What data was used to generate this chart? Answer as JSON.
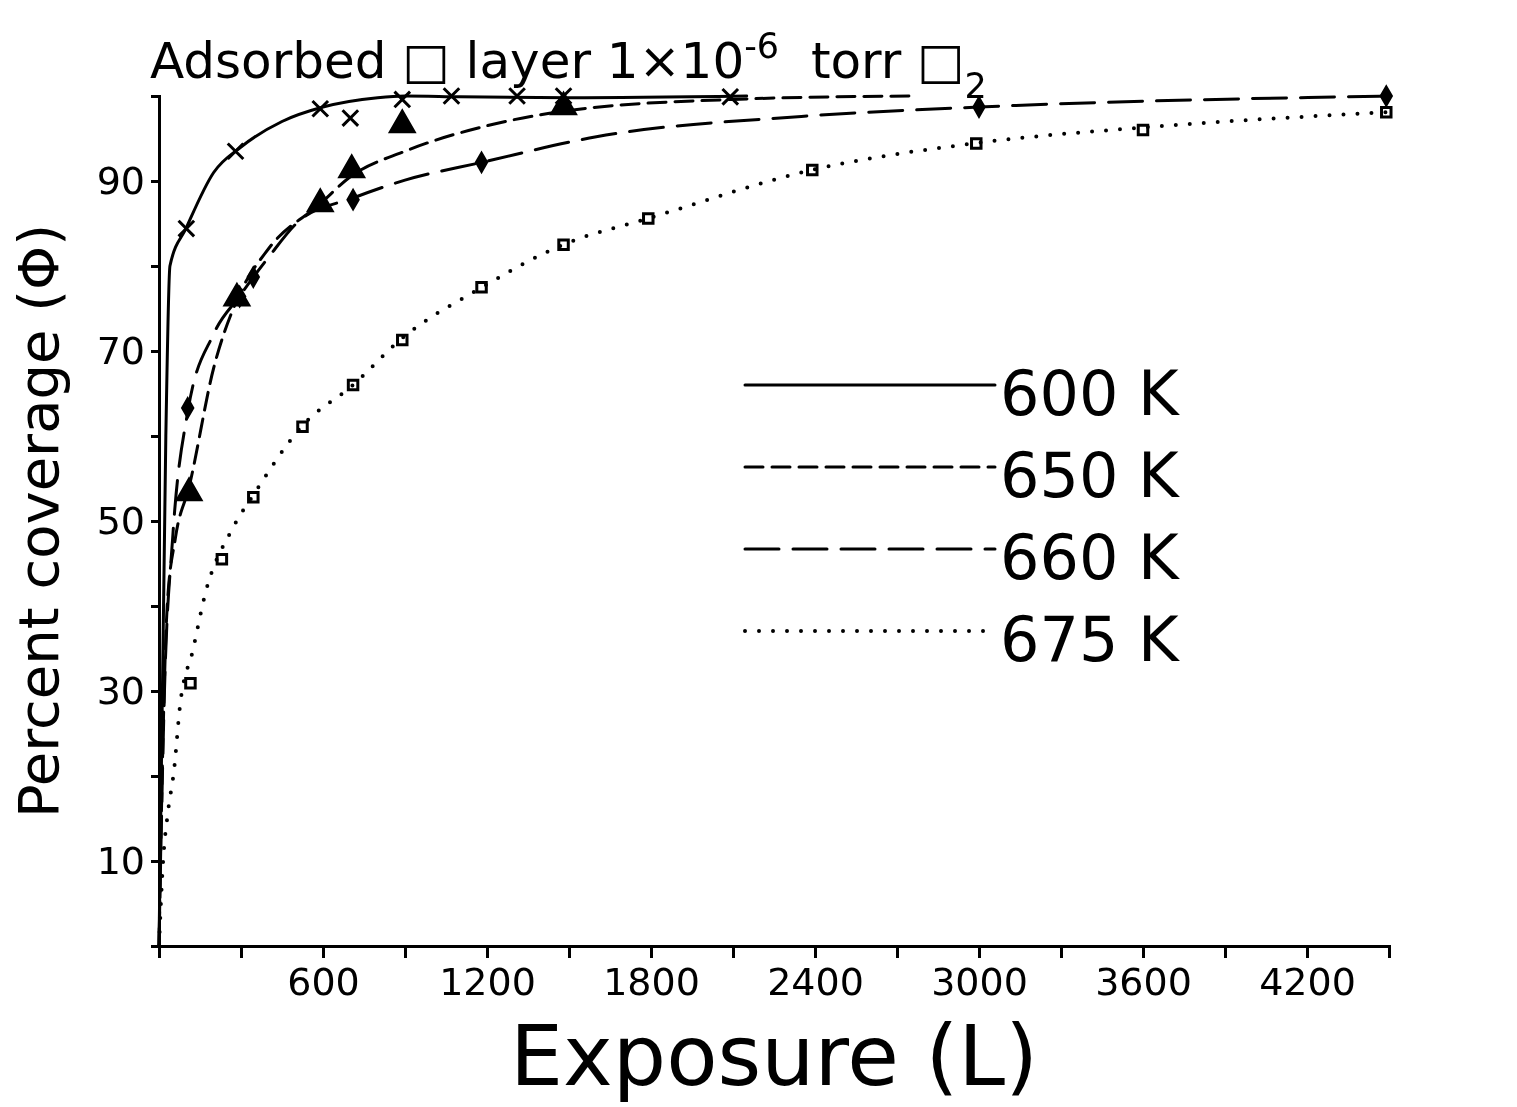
{
  "chart_data": {
    "type": "line",
    "title": "Adsorbed □ layer 1×10$^{-6}$  torr □$_{2}$",
    "xlabel": "Exposure (L)",
    "ylabel": "Percent coverage (Φ)",
    "xlim": [
      0,
      4500
    ],
    "ylim": [
      0,
      100
    ],
    "xticks": [
      {
        "value": 300,
        "label": null
      },
      600,
      {
        "value": 900,
        "label": null
      },
      1200,
      {
        "value": 1500,
        "label": null
      },
      1800,
      {
        "value": 2100,
        "label": null
      },
      2400,
      {
        "value": 2700,
        "label": null
      },
      3000,
      {
        "value": 3300,
        "label": null
      },
      3600,
      {
        "value": 3900,
        "label": null
      },
      4200
    ],
    "yticks": [
      10,
      {
        "value": 20,
        "label": null
      },
      30,
      {
        "value": 40,
        "label": null
      },
      50,
      {
        "value": 60,
        "label": null
      },
      70,
      {
        "value": 80,
        "label": null
      },
      90,
      {
        "value": 100,
        "label": null
      }
    ],
    "grid": false,
    "legend": "right",
    "series": [
      {
        "name": "600 K",
        "line_style": "solid",
        "color": "#000000",
        "x": [
          0,
          25,
          40,
          100,
          200,
          300,
          450,
          600,
          800,
          900,
          1100,
          1500,
          2150
        ],
        "values": [
          0,
          60,
          80,
          84.5,
          91,
          94,
          97,
          98.7,
          99.8,
          100,
          99.9,
          99.8,
          100
        ]
      },
      {
        "name": "650 K",
        "line_style": "dashed",
        "color": "#000000",
        "x": [
          0,
          15,
          30,
          60,
          110,
          200,
          285,
          400,
          589,
          700,
          900,
          1200,
          1500,
          2100,
          2750
        ],
        "values": [
          0,
          25,
          40,
          48,
          54,
          68,
          76,
          82,
          87.3,
          90.5,
          93.5,
          96.5,
          98.3,
          99.6,
          100
        ]
      },
      {
        "name": "660 K",
        "line_style": "longdash",
        "color": "#000000",
        "x": [
          0,
          20,
          50,
          106,
          200,
          296,
          400,
          516,
          710,
          900,
          1182,
          1600,
          2350,
          3000,
          4500
        ],
        "values": [
          0,
          30,
          48,
          63,
          72,
          76.5,
          81,
          85.4,
          88,
          90.1,
          92.2,
          95.2,
          97.6,
          98.7,
          100
        ]
      },
      {
        "name": "675 K",
        "line_style": "dotted",
        "color": "#000000",
        "x": [
          0,
          15,
          33,
          55,
          77,
          124,
          168,
          267,
          344,
          527,
          710,
          882,
          1182,
          1478,
          1790,
          2390,
          3000,
          3600,
          4500
        ],
        "values": [
          0,
          10,
          15.8,
          20.7,
          28.3,
          34.8,
          41.3,
          49,
          53,
          61.3,
          66,
          71.3,
          77.5,
          82.5,
          85.6,
          91.3,
          94.5,
          96.3,
          98.1
        ]
      },
      {
        "type": "scatter",
        "marker": "cross",
        "color": "#000000",
        "x": [
          100,
          280,
          590,
          700,
          890,
          1070,
          1310,
          1480,
          2090
        ],
        "values": [
          84.4,
          93.5,
          98.5,
          97.4,
          99.6,
          100,
          100,
          100,
          99.9
        ]
      },
      {
        "type": "scatter",
        "marker": "triangle",
        "color": "#000000",
        "x": [
          110,
          285,
          590,
          705,
          890,
          1480
        ],
        "values": [
          53.3,
          76.2,
          87.3,
          91.3,
          96.6,
          98.7
        ]
      },
      {
        "type": "scatter",
        "marker": "diamond",
        "color": "#000000",
        "x": [
          105,
          295,
          345,
          710,
          1180,
          3000,
          4490
        ],
        "values": [
          63.3,
          76.4,
          78.7,
          87.8,
          92.2,
          98.7,
          100
        ]
      },
      {
        "type": "scatter",
        "marker": "square",
        "color": "#000000",
        "x": [
          115,
          230,
          345,
          525,
          710,
          890,
          1180,
          1480,
          1790,
          2390,
          2990,
          3600,
          4490
        ],
        "values": [
          30.9,
          45.5,
          52.8,
          61.1,
          66,
          71.3,
          77.5,
          82.5,
          85.6,
          91.3,
          94.4,
          96,
          98.1
        ]
      }
    ]
  }
}
